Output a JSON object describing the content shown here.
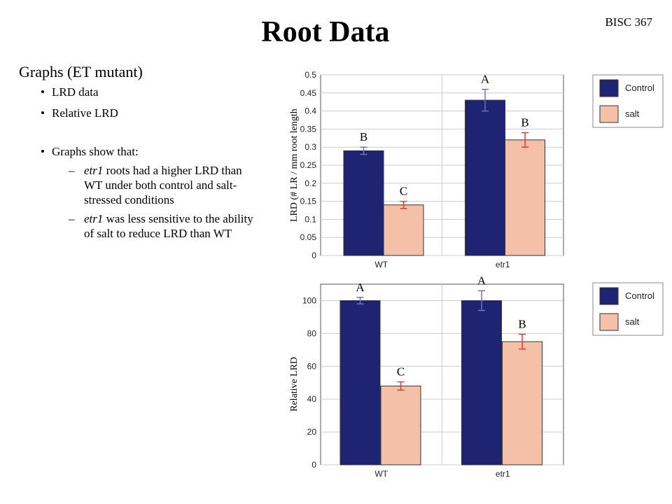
{
  "slide": {
    "title": "Root Data",
    "course": "BISC 367",
    "heading": "Graphs (ET mutant)",
    "bullets": [
      "LRD data",
      "Relative LRD",
      "Graphs show that:"
    ],
    "findings": [
      {
        "gene": "etr1",
        "text": " roots had a higher LRD than WT under both control and salt-stressed conditions"
      },
      {
        "gene": "etr1",
        "text": " was less sensitive to the ability of salt to reduce LRD than WT"
      }
    ],
    "dash": "–"
  },
  "colors": {
    "control": "#1f2472",
    "salt": "#f4c1a8",
    "error_control": "#6a72c8",
    "error_salt": "#e03c3c",
    "grid": "#cccccc"
  },
  "chart_data": [
    {
      "type": "bar",
      "categories": [
        "WT",
        "etr1"
      ],
      "ylabel": "LRD (# LR / mm root length",
      "ylim": [
        0,
        0.5
      ],
      "yticks": [
        "0",
        "0.05",
        "0.1",
        "0.15",
        "0.2",
        "0.25",
        "0.3",
        "0.35",
        "0.4",
        "0.45",
        "0.5"
      ],
      "series": [
        {
          "name": "Control",
          "values": [
            0.29,
            0.43
          ],
          "errors": [
            0.01,
            0.03
          ],
          "letters": [
            "B",
            "A"
          ]
        },
        {
          "name": "salt",
          "values": [
            0.14,
            0.32
          ],
          "errors": [
            0.01,
            0.02
          ],
          "letters": [
            "C",
            "B"
          ]
        }
      ],
      "legend": "right",
      "grid": true
    },
    {
      "type": "bar",
      "categories": [
        "WT",
        "etr1"
      ],
      "ylabel": "Relative LRD",
      "ylim": [
        0,
        110
      ],
      "yticks": [
        "0",
        "20",
        "40",
        "60",
        "80",
        "100"
      ],
      "series": [
        {
          "name": "Control",
          "values": [
            100,
            100
          ],
          "errors": [
            2,
            6
          ],
          "letters": [
            "A",
            "A"
          ]
        },
        {
          "name": "salt",
          "values": [
            48,
            75
          ],
          "errors": [
            2.5,
            4.5
          ],
          "letters": [
            "C",
            "B"
          ]
        }
      ],
      "legend": "right",
      "grid": true
    }
  ]
}
